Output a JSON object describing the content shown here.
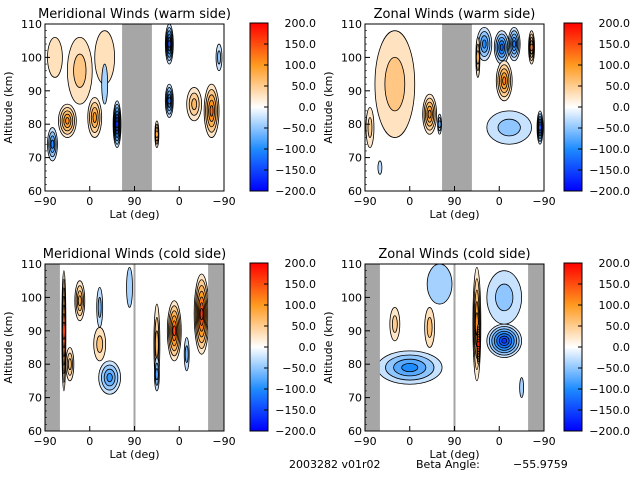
{
  "footer": {
    "date_version": "2003282 v01r02",
    "beta_label": "Beta Angle:",
    "beta_value": "-55.9759"
  },
  "colorbar": {
    "ticks": [
      "200.0",
      "150.0",
      "100.0",
      "50.0",
      "0.0",
      "-50.0",
      "-100.0",
      "-150.0",
      "-200.0"
    ],
    "range": [
      -200,
      200
    ],
    "colors": {
      "min": "#0000ff",
      "neg_mid": "#1e8cff",
      "zero": "#ffffff",
      "pos_mid": "#ff9a1e",
      "max": "#ff0000"
    }
  },
  "chart_data": [
    {
      "type": "heatmap",
      "title": "Meridional Winds (warm side)",
      "xlabel": "Lat (deg)",
      "ylabel": "Altitude (km)",
      "xticks": [
        "-90",
        "0",
        "90",
        "0",
        "-90"
      ],
      "yticks": [
        "60",
        "70",
        "80",
        "90",
        "100",
        "110"
      ],
      "ylim": [
        60,
        110
      ],
      "no_data_bands": [
        [
          65,
          125
        ]
      ],
      "blobs": [
        {
          "x": -45,
          "y": 81,
          "v": 110,
          "rx": 18,
          "ry": 5
        },
        {
          "x": 10,
          "y": 82,
          "v": 100,
          "rx": 14,
          "ry": 6
        },
        {
          "x": -20,
          "y": 96,
          "v": 55,
          "rx": 25,
          "ry": 10
        },
        {
          "x": 30,
          "y": 100,
          "v": 30,
          "rx": 20,
          "ry": 8
        },
        {
          "x": -70,
          "y": 100,
          "v": 30,
          "rx": 15,
          "ry": 6
        },
        {
          "x": 55,
          "y": 80,
          "v": -170,
          "rx": 8,
          "ry": 7
        },
        {
          "x": -75,
          "y": 74,
          "v": -100,
          "rx": 10,
          "ry": 5
        },
        {
          "x": 30,
          "y": 92,
          "v": -40,
          "rx": 6,
          "ry": 6
        },
        {
          "x": 160,
          "y": 104,
          "v": -150,
          "rx": 8,
          "ry": 6
        },
        {
          "x": 160,
          "y": 87,
          "v": -120,
          "rx": 8,
          "ry": 5
        },
        {
          "x": 210,
          "y": 86,
          "v": 70,
          "rx": 15,
          "ry": 5
        },
        {
          "x": 245,
          "y": 84,
          "v": 130,
          "rx": 15,
          "ry": 8
        },
        {
          "x": 260,
          "y": 100,
          "v": -50,
          "rx": 6,
          "ry": 4
        },
        {
          "x": 135,
          "y": 77,
          "v": 90,
          "rx": 4,
          "ry": 4
        }
      ]
    },
    {
      "type": "heatmap",
      "title": "Zonal Winds (warm side)",
      "xlabel": "Lat (deg)",
      "ylabel": "Altitude (km)",
      "xticks": [
        "-90",
        "0",
        "90",
        "0",
        "-90"
      ],
      "yticks": [
        "60",
        "70",
        "80",
        "90",
        "100",
        "110"
      ],
      "ylim": [
        60,
        110
      ],
      "no_data_bands": [
        [
          65,
          125
        ]
      ],
      "blobs": [
        {
          "x": -30,
          "y": 92,
          "v": 55,
          "rx": 40,
          "ry": 16
        },
        {
          "x": 40,
          "y": 83,
          "v": 110,
          "rx": 14,
          "ry": 6
        },
        {
          "x": -80,
          "y": 79,
          "v": 50,
          "rx": 8,
          "ry": 6
        },
        {
          "x": 60,
          "y": 80,
          "v": -80,
          "rx": 4,
          "ry": 3
        },
        {
          "x": -60,
          "y": 67,
          "v": -30,
          "rx": 4,
          "ry": 2
        },
        {
          "x": 150,
          "y": 104,
          "v": -100,
          "rx": 15,
          "ry": 5
        },
        {
          "x": 185,
          "y": 103,
          "v": -130,
          "rx": 15,
          "ry": 5
        },
        {
          "x": 210,
          "y": 104,
          "v": -110,
          "rx": 12,
          "ry": 5
        },
        {
          "x": 190,
          "y": 93,
          "v": 120,
          "rx": 16,
          "ry": 6
        },
        {
          "x": 200,
          "y": 79,
          "v": -50,
          "rx": 45,
          "ry": 5
        },
        {
          "x": 262,
          "y": 79,
          "v": -140,
          "rx": 6,
          "ry": 5
        },
        {
          "x": 245,
          "y": 103,
          "v": 130,
          "rx": 6,
          "ry": 5
        },
        {
          "x": 137,
          "y": 100,
          "v": 80,
          "rx": 4,
          "ry": 6
        }
      ]
    },
    {
      "type": "heatmap",
      "title": "Meridional Winds (cold side)",
      "xlabel": "Lat (deg)",
      "ylabel": "Altitude (km)",
      "xticks": [
        "-90",
        "0",
        "90",
        "0",
        "-90"
      ],
      "yticks": [
        "60",
        "70",
        "80",
        "90",
        "100",
        "110"
      ],
      "ylim": [
        60,
        110
      ],
      "no_data_bands": [
        [
          -90,
          -60
        ],
        [
          238,
          270
        ]
      ],
      "gap_line": 90,
      "blobs": [
        {
          "x": -52,
          "y": 90,
          "v": 160,
          "rx": 4,
          "ry": 18
        },
        {
          "x": -20,
          "y": 99,
          "v": 90,
          "rx": 10,
          "ry": 6
        },
        {
          "x": 20,
          "y": 86,
          "v": 60,
          "rx": 12,
          "ry": 5
        },
        {
          "x": -40,
          "y": 80,
          "v": 70,
          "rx": 8,
          "ry": 5
        },
        {
          "x": 40,
          "y": 76,
          "v": -90,
          "rx": 22,
          "ry": 5
        },
        {
          "x": 20,
          "y": 97,
          "v": -60,
          "rx": 6,
          "ry": 6
        },
        {
          "x": 80,
          "y": 103,
          "v": -40,
          "rx": 6,
          "ry": 6
        },
        {
          "x": 135,
          "y": 86,
          "v": 70,
          "rx": 6,
          "ry": 12
        },
        {
          "x": 135,
          "y": 77,
          "v": -80,
          "rx": 5,
          "ry": 5
        },
        {
          "x": 170,
          "y": 90,
          "v": 150,
          "rx": 14,
          "ry": 9
        },
        {
          "x": 225,
          "y": 95,
          "v": 170,
          "rx": 15,
          "ry": 12
        },
        {
          "x": 195,
          "y": 83,
          "v": -60,
          "rx": 5,
          "ry": 5
        }
      ]
    },
    {
      "type": "heatmap",
      "title": "Zonal Winds (cold side)",
      "xlabel": "Lat (deg)",
      "ylabel": "Altitude (km)",
      "xticks": [
        "-90",
        "0",
        "90",
        "0",
        "-90"
      ],
      "yticks": [
        "60",
        "70",
        "80",
        "90",
        "100",
        "110"
      ],
      "ylim": [
        60,
        110
      ],
      "no_data_bands": [
        [
          -90,
          -60
        ],
        [
          238,
          270
        ]
      ],
      "gap_line": 90,
      "blobs": [
        {
          "x": 0,
          "y": 79,
          "v": -100,
          "rx": 65,
          "ry": 5
        },
        {
          "x": -30,
          "y": 92,
          "v": 50,
          "rx": 10,
          "ry": 5
        },
        {
          "x": 40,
          "y": 91,
          "v": 60,
          "rx": 10,
          "ry": 6
        },
        {
          "x": 60,
          "y": 104,
          "v": -40,
          "rx": 25,
          "ry": 6
        },
        {
          "x": 135,
          "y": 92,
          "v": 110,
          "rx": 8,
          "ry": 17
        },
        {
          "x": 138,
          "y": 86,
          "v": 180,
          "rx": 3,
          "ry": 6
        },
        {
          "x": 190,
          "y": 87,
          "v": -160,
          "rx": 35,
          "ry": 5
        },
        {
          "x": 190,
          "y": 100,
          "v": -50,
          "rx": 35,
          "ry": 8
        },
        {
          "x": 225,
          "y": 73,
          "v": -40,
          "rx": 4,
          "ry": 3
        }
      ]
    }
  ]
}
